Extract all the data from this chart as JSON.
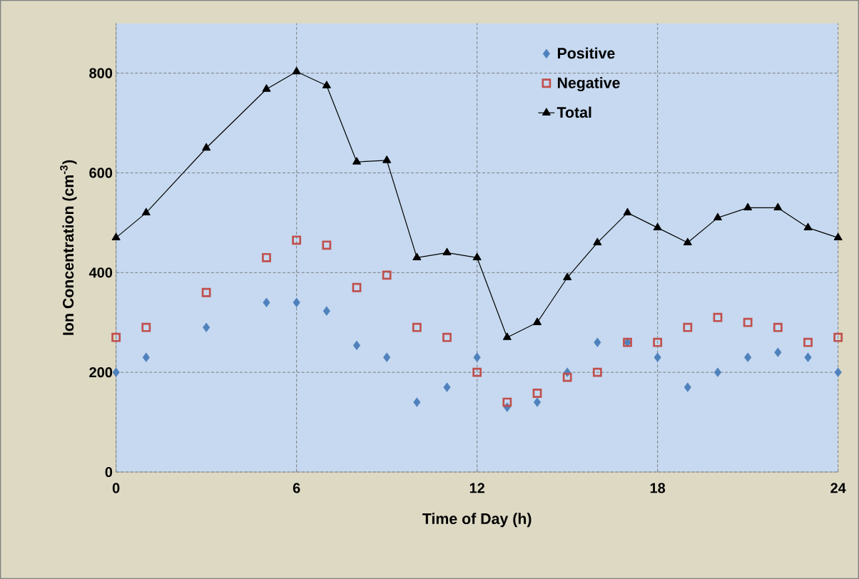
{
  "chart_data": {
    "type": "line",
    "xlabel": "Time of Day (h)",
    "ylabel": "Ion Concentration (cm$^{-3}$)",
    "x": [
      0,
      1,
      3,
      5,
      6,
      7,
      8,
      9,
      10,
      11,
      12,
      13,
      14,
      15,
      16,
      17,
      18,
      19,
      20,
      21,
      22,
      23,
      24
    ],
    "series": [
      {
        "name": "Positive",
        "type": "scatter",
        "marker": "diamond",
        "color": "#4f81bd",
        "values": [
          200,
          230,
          290,
          340,
          340,
          323,
          254,
          230,
          140,
          170,
          230,
          130,
          140,
          200,
          260,
          260,
          230,
          170,
          200,
          230,
          240,
          230,
          200
        ]
      },
      {
        "name": "Negative",
        "type": "scatter",
        "marker": "square",
        "color": "#c0504d",
        "values": [
          270,
          290,
          360,
          430,
          465,
          455,
          370,
          395,
          290,
          270,
          200,
          140,
          158,
          190,
          200,
          260,
          260,
          290,
          310,
          300,
          290,
          260,
          270
        ]
      },
      {
        "name": "Total",
        "marker": "triangle",
        "line_style": "solid",
        "color": "#000000",
        "values": [
          470,
          520,
          650,
          768,
          803,
          775,
          622,
          625,
          430,
          440,
          430,
          270,
          300,
          390,
          460,
          520,
          490,
          460,
          510,
          530,
          530,
          490,
          470
        ]
      }
    ],
    "xlim": [
      0,
      24
    ],
    "xticks": [
      0,
      6,
      12,
      18,
      24
    ],
    "ylim": [
      0,
      900
    ],
    "yticks": [
      0,
      200,
      400,
      600,
      800
    ],
    "grid": true,
    "legend": "top right"
  }
}
